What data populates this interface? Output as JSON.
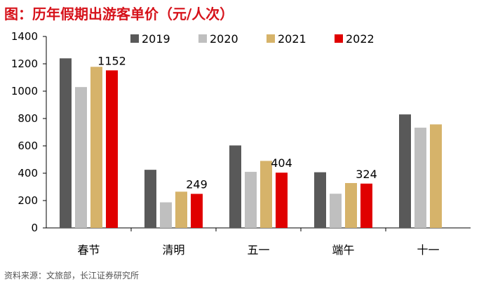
{
  "title": "图：历年假期出游客单价（元/人次）",
  "source": "资料来源：文旅部，长江证券研究所",
  "colors": {
    "2019": "#595959",
    "2020": "#bfbfbf",
    "2021": "#d6b36a",
    "2022": "#e00000",
    "axis": "#000000"
  },
  "chart_data": {
    "type": "bar",
    "categories": [
      "春节",
      "清明",
      "五一",
      "端午",
      "十一"
    ],
    "series": [
      {
        "name": "2019",
        "values": [
          1240,
          425,
          603,
          407,
          830
        ]
      },
      {
        "name": "2020",
        "values": [
          1030,
          187,
          410,
          250,
          733
        ]
      },
      {
        "name": "2021",
        "values": [
          1178,
          265,
          490,
          328,
          757
        ]
      },
      {
        "name": "2022",
        "values": [
          1152,
          249,
          404,
          324,
          null
        ]
      }
    ],
    "data_labels": [
      {
        "series": "2022",
        "category": "春节",
        "text": "1152"
      },
      {
        "series": "2022",
        "category": "清明",
        "text": "249"
      },
      {
        "series": "2022",
        "category": "五一",
        "text": "404"
      },
      {
        "series": "2022",
        "category": "端午",
        "text": "324"
      }
    ],
    "yticks": [
      0,
      200,
      400,
      600,
      800,
      1000,
      1200,
      1400
    ],
    "ylim": [
      0,
      1400
    ],
    "title": "图：历年假期出游客单价（元/人次）",
    "xlabel": "",
    "ylabel": "",
    "grid": false,
    "legend": "top-center"
  }
}
